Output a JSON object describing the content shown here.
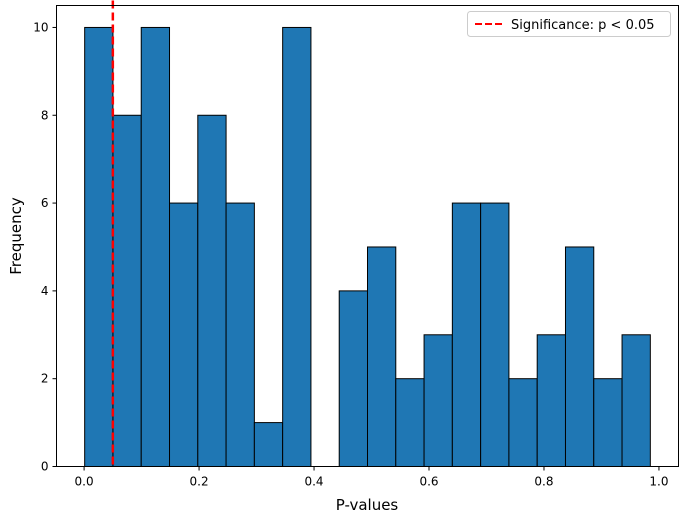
{
  "chart_data": {
    "type": "bar",
    "subtype": "histogram",
    "title": "",
    "xlabel": "P-values",
    "ylabel": "Frequency",
    "xlim": [
      -0.048,
      1.034
    ],
    "ylim": [
      0,
      10.5
    ],
    "xticks": [
      0.0,
      0.2,
      0.4,
      0.6,
      0.8,
      1.0
    ],
    "xtick_labels": [
      "0.0",
      "0.2",
      "0.4",
      "0.6",
      "0.8",
      "1.0"
    ],
    "yticks": [
      0,
      2,
      4,
      6,
      8,
      10
    ],
    "ytick_labels": [
      "0",
      "2",
      "4",
      "6",
      "8",
      "10"
    ],
    "bin_start": 0.001,
    "bin_end": 0.985,
    "bins": 20,
    "counts": [
      10,
      8,
      10,
      6,
      8,
      6,
      1,
      10,
      0,
      4,
      5,
      2,
      3,
      6,
      6,
      2,
      3,
      5,
      2,
      3
    ],
    "bar_color": "#1f77b4",
    "edge_color": "#000000",
    "threshold": {
      "x": 0.05,
      "label": "Significance: p < 0.05",
      "color": "#ff0000",
      "style": "dashed"
    },
    "legend_placement": "top-right",
    "grid": false
  }
}
